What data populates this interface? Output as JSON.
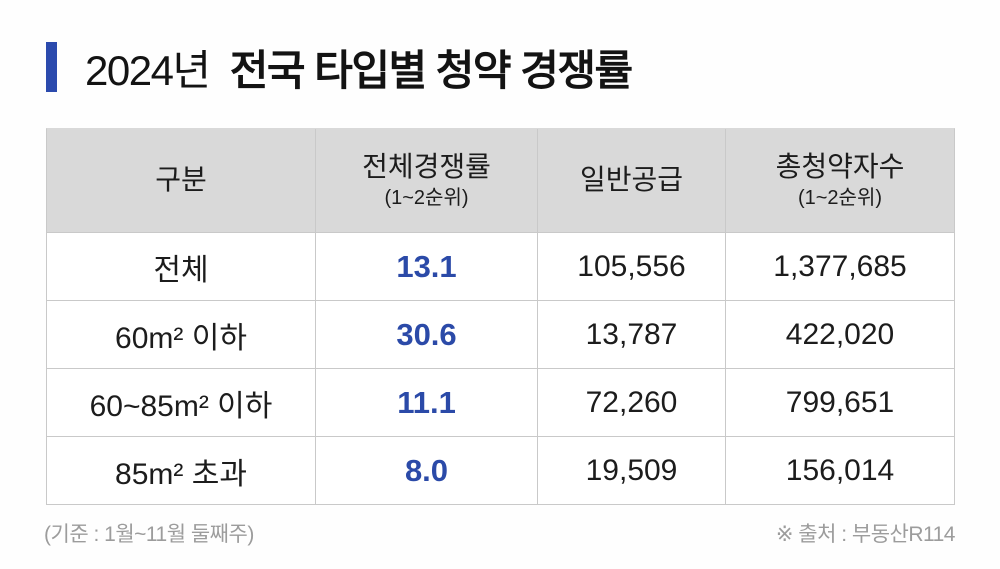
{
  "title": {
    "prefix": "2024년",
    "main": "전국 타입별 청약 경쟁률"
  },
  "colors": {
    "accent_blue": "#2b4aad",
    "rate_blue": "#2b4aa8",
    "header_gray": "#d9d9d9",
    "border_gray": "#c9c9c9",
    "note_gray": "#9c9c9c"
  },
  "chart_data": {
    "type": "table",
    "title": "2024년 전국 타입별 청약 경쟁률",
    "columns": [
      {
        "label": "구분",
        "sublabel": ""
      },
      {
        "label": "전체경쟁률",
        "sublabel": "(1~2순위)"
      },
      {
        "label": "일반공급",
        "sublabel": ""
      },
      {
        "label": "총청약자수",
        "sublabel": "(1~2순위)"
      }
    ],
    "rows": [
      {
        "category": "전체",
        "rate": "13.1",
        "supply": "105,556",
        "applicants": "1,377,685"
      },
      {
        "category": "60m² 이하",
        "rate": "30.6",
        "supply": "13,787",
        "applicants": "422,020"
      },
      {
        "category": "60~85m² 이하",
        "rate": "11.1",
        "supply": "72,260",
        "applicants": "799,651"
      },
      {
        "category": "85m² 초과",
        "rate": "8.0",
        "supply": "19,509",
        "applicants": "156,014"
      }
    ]
  },
  "footer": {
    "basis_note": "(기준 : 1월~11월 둘째주)",
    "source_note": "※ 출처 : 부동산R114"
  }
}
